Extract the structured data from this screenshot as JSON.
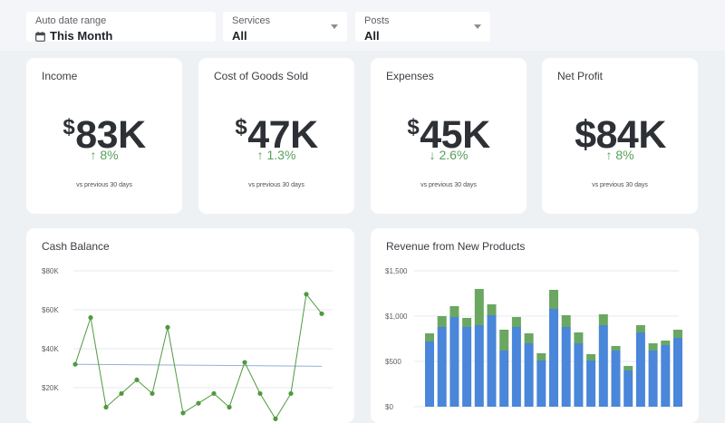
{
  "filters": {
    "date": {
      "label": "Auto date range",
      "value": "This Month"
    },
    "services": {
      "label": "Services",
      "value": "All"
    },
    "posts": {
      "label": "Posts",
      "value": "All"
    }
  },
  "kpis": [
    {
      "title": "Income",
      "currency": "$",
      "value": "83K",
      "change": "↑ 8%",
      "compare": "vs previous 30 days"
    },
    {
      "title": "Cost of Goods Sold",
      "currency": "$",
      "value": "47K",
      "change": "↑ 1.3%",
      "compare": "vs previous 30 days"
    },
    {
      "title": "Expenses",
      "currency": "$",
      "value": "45K",
      "change": "↓ 2.6%",
      "compare": "vs previous 30 days"
    },
    {
      "title": "Net Profit",
      "currency": "",
      "value": "$84K",
      "change": "↑ 8%",
      "compare": "vs previous 30 days"
    }
  ],
  "colors": {
    "positive": "#58a05a",
    "line": "#4f9a3f",
    "target": "#8fb3d6",
    "bar_primary": "#4a86d9",
    "bar_secondary": "#6aa761"
  },
  "chart_data": [
    {
      "type": "line",
      "title": "Cash Balance",
      "yticks": [
        "$80K",
        "$60K",
        "$40K",
        "$20K"
      ],
      "tick_values": [
        80000,
        60000,
        40000,
        20000
      ],
      "ylim": [
        0,
        85000
      ],
      "series": [
        {
          "values": [
            32000,
            56000,
            10000,
            17000,
            24000,
            17000,
            51000,
            7000,
            12000,
            17000,
            10000,
            33000,
            17000,
            4000,
            17000,
            68000,
            58000
          ]
        }
      ],
      "reference_line": [
        32000,
        31000
      ],
      "grid": true
    },
    {
      "type": "bar",
      "title": "Revenue from New Products",
      "yticks": [
        "$1,500",
        "$1,000",
        "$500",
        "$0"
      ],
      "tick_values": [
        1500,
        1000,
        500,
        0
      ],
      "ylim": [
        0,
        1500
      ],
      "stacked": true,
      "series": [
        {
          "values": [
            720,
            880,
            990,
            880,
            900,
            1010,
            620,
            880,
            700,
            510,
            1080,
            880,
            700,
            510,
            900,
            620,
            400,
            820,
            620,
            680,
            760
          ]
        },
        {
          "values": [
            90,
            120,
            120,
            100,
            400,
            120,
            230,
            110,
            110,
            80,
            210,
            130,
            120,
            70,
            120,
            50,
            50,
            80,
            80,
            50,
            90
          ]
        }
      ],
      "grid": true
    }
  ]
}
